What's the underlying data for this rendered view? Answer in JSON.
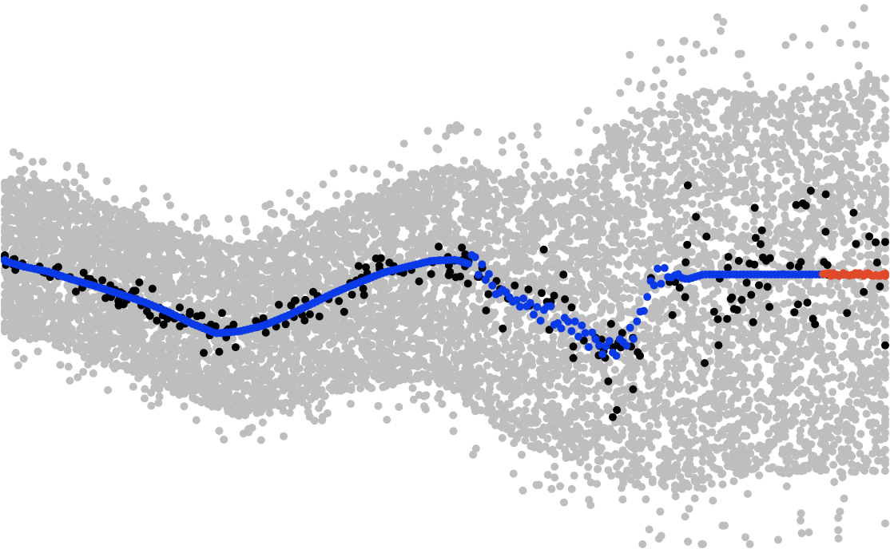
{
  "chart_data": {
    "type": "scatter",
    "title": "",
    "xlabel": "",
    "ylabel": "",
    "axes_visible": false,
    "grid": false,
    "xlim": [
      0,
      1114
    ],
    "ylim": [
      -2.8,
      2.8
    ],
    "colors": {
      "ensemble": "#bebebe",
      "observed": "#000000",
      "fitted": "#0a3ae8",
      "forecast": "#e04a2a",
      "background": "#ffffff"
    },
    "envelope": {
      "x": [
        0,
        60,
        120,
        180,
        240,
        300,
        360,
        420,
        480,
        540,
        600,
        660,
        720,
        780,
        840,
        900,
        960,
        1020,
        1080,
        1114
      ],
      "upper": [
        1.0,
        0.95,
        0.75,
        0.6,
        0.4,
        0.3,
        0.5,
        0.7,
        0.9,
        1.1,
        1.1,
        1.0,
        1.05,
        1.6,
        1.8,
        1.9,
        1.85,
        1.9,
        2.0,
        2.0
      ],
      "lower": [
        -0.6,
        -0.7,
        -0.9,
        -1.05,
        -1.3,
        -1.45,
        -1.35,
        -1.2,
        -1.15,
        -1.05,
        -1.45,
        -1.75,
        -1.9,
        -2.15,
        -2.2,
        -2.15,
        -2.05,
        -2.0,
        -2.05,
        -2.0
      ]
    },
    "fitted": {
      "x": [
        0,
        30,
        60,
        90,
        120,
        150,
        180,
        210,
        240,
        270,
        300,
        330,
        360,
        390,
        420,
        450,
        480,
        510,
        540,
        570,
        590,
        600,
        620,
        640,
        660,
        680,
        700,
        720,
        740,
        760,
        780,
        800,
        810,
        820,
        840,
        860,
        880,
        920,
        960,
        1000,
        1030
      ],
      "y": [
        0.15,
        0.08,
        0.03,
        -0.05,
        -0.12,
        -0.2,
        -0.28,
        -0.38,
        -0.5,
        -0.6,
        -0.58,
        -0.52,
        -0.42,
        -0.3,
        -0.18,
        -0.08,
        0.02,
        0.08,
        0.14,
        0.15,
        0.1,
        0.05,
        -0.1,
        -0.2,
        -0.28,
        -0.38,
        -0.48,
        -0.58,
        -0.68,
        -0.78,
        -0.75,
        -0.45,
        -0.2,
        0.0,
        0.0,
        -0.05,
        0.0,
        0.0,
        0.0,
        0.0,
        0.0
      ]
    },
    "forecast": {
      "x": [
        1030,
        1114
      ],
      "y": [
        0.0,
        0.0
      ]
    },
    "observed_spread": {
      "x": [
        0,
        120,
        240,
        360,
        480,
        580,
        640,
        700,
        760,
        820,
        880,
        940,
        1000,
        1060,
        1114
      ],
      "noise": [
        0.08,
        0.12,
        0.25,
        0.25,
        0.25,
        0.3,
        0.45,
        0.55,
        0.7,
        0.8,
        0.9,
        0.95,
        1.0,
        1.05,
        1.05
      ]
    },
    "counts": {
      "ensemble": 9000,
      "observed": 260,
      "fitted": 240,
      "forecast": 34,
      "outliers": 260
    },
    "seed": 2024
  }
}
